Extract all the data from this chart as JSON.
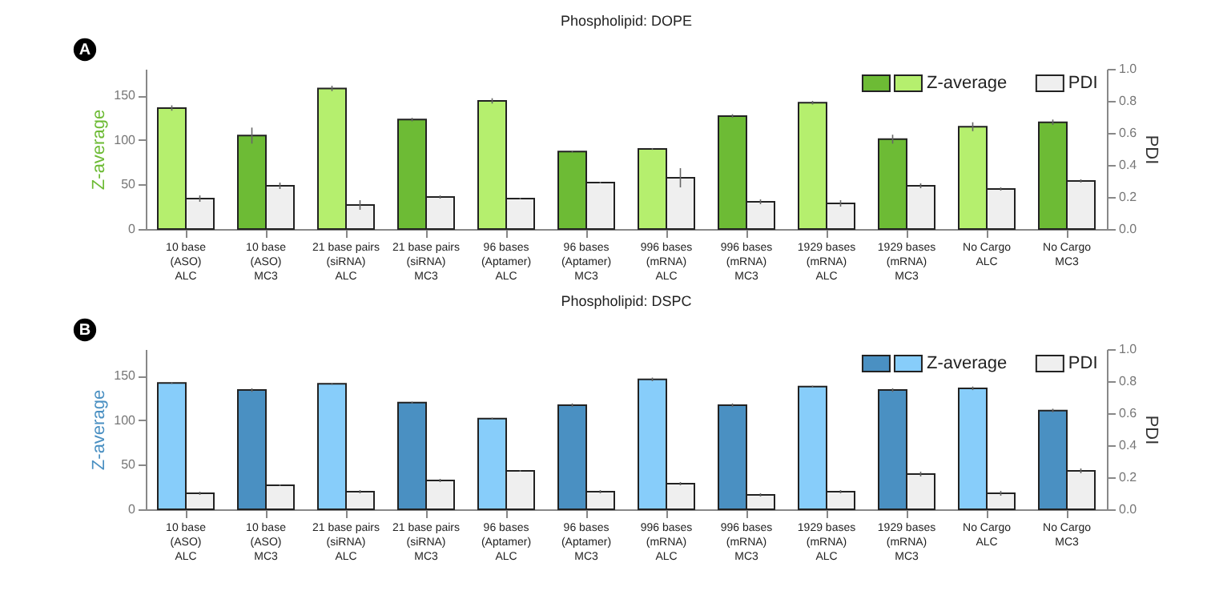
{
  "chart_data": [
    {
      "type": "bar",
      "title": "Phospholipid: DOPE",
      "annotations": [
        "A"
      ],
      "ylabel": "Z-average",
      "y2label": "PDI",
      "categories": [
        "10 base\n(ASO)\nALC",
        "10 base\n(ASO)\nMC3",
        "21 base pairs\n(siRNA)\nALC",
        "21 base pairs\n(siRNA)\nMC3",
        "96 bases\n(Aptamer)\nALC",
        "96 bases\n(Aptamer)\nMC3",
        "996 bases\n(mRNA)\nALC",
        "996 bases\n(mRNA)\nMC3",
        "1929 bases\n(mRNA)\nALC",
        "1929 bases\n(mRNA)\nMC3",
        "No Cargo\nALC",
        "No Cargo\nMC3"
      ],
      "series": [
        {
          "name": "Z-average",
          "colors": [
            "#b5ef6e",
            "#6dbb35",
            "#b5ef6e",
            "#6dbb35",
            "#b5ef6e",
            "#6dbb35",
            "#b5ef6e",
            "#6dbb35",
            "#b5ef6e",
            "#6dbb35",
            "#b5ef6e",
            "#6dbb35"
          ],
          "values": [
            136,
            105,
            158,
            123,
            144,
            87,
            90,
            127,
            142,
            101,
            115,
            120
          ],
          "errors": [
            3,
            9,
            3,
            2,
            3,
            1,
            1,
            2,
            2,
            5,
            5,
            3
          ]
        },
        {
          "name": "PDI",
          "color": "#efefef",
          "axis": "y2",
          "values": [
            0.19,
            0.27,
            0.15,
            0.2,
            0.19,
            0.29,
            0.32,
            0.17,
            0.16,
            0.27,
            0.25,
            0.3
          ],
          "errors": [
            0.02,
            0.02,
            0.03,
            0.01,
            0.005,
            0.005,
            0.06,
            0.015,
            0.02,
            0.015,
            0.01,
            0.01
          ]
        }
      ],
      "ylim": [
        0,
        180
      ],
      "yticks": [
        0,
        50,
        100,
        150
      ],
      "y2lim": [
        0,
        1
      ],
      "y2ticks": [
        {
          "value": 0,
          "label": "0.0"
        },
        {
          "value": 0.2,
          "label": "0.2"
        },
        {
          "value": 0.4,
          "label": "0.4"
        },
        {
          "value": 0.6,
          "label": "0.6"
        },
        {
          "value": 0.8,
          "label": "0.8"
        },
        {
          "value": 1,
          "label": "1.0"
        }
      ],
      "legend": "top right"
    },
    {
      "type": "bar",
      "title": "Phospholipid: DSPC",
      "annotations": [
        "B"
      ],
      "ylabel": "Z-average",
      "y2label": "PDI",
      "categories": [
        "10 base\n(ASO)\nALC",
        "10 base\n(ASO)\nMC3",
        "21 base pairs\n(siRNA)\nALC",
        "21 base pairs\n(siRNA)\nMC3",
        "96 bases\n(Aptamer)\nALC",
        "96 bases\n(Aptamer)\nMC3",
        "996 bases\n(mRNA)\nALC",
        "996 bases\n(mRNA)\nMC3",
        "1929 bases\n(mRNA)\nALC",
        "1929 bases\n(mRNA)\nMC3",
        "No Cargo\nALC",
        "No Cargo\nMC3"
      ],
      "series": [
        {
          "name": "Z-average",
          "colors": [
            "#87cdfa",
            "#4a90c2",
            "#87cdfa",
            "#4a90c2",
            "#87cdfa",
            "#4a90c2",
            "#87cdfa",
            "#4a90c2",
            "#87cdfa",
            "#4a90c2",
            "#87cdfa",
            "#4a90c2"
          ],
          "values": [
            142,
            134,
            141,
            120,
            102,
            117,
            146,
            117,
            138,
            134,
            136,
            111
          ],
          "errors": [
            1,
            2,
            1,
            1,
            1,
            2,
            2,
            2,
            1,
            2,
            2,
            2
          ]
        },
        {
          "name": "PDI",
          "color": "#efefef",
          "axis": "y2",
          "values": [
            0.1,
            0.15,
            0.11,
            0.18,
            0.24,
            0.11,
            0.16,
            0.09,
            0.11,
            0.22,
            0.1,
            0.24
          ],
          "errors": [
            0.01,
            0.005,
            0.01,
            0.01,
            0.005,
            0.01,
            0.01,
            0.01,
            0.01,
            0.015,
            0.015,
            0.015
          ]
        }
      ],
      "ylim": [
        0,
        180
      ],
      "yticks": [
        0,
        50,
        100,
        150
      ],
      "y2lim": [
        0,
        1
      ],
      "y2ticks": [
        {
          "value": 0,
          "label": "0.0"
        },
        {
          "value": 0.2,
          "label": "0.2"
        },
        {
          "value": 0.4,
          "label": "0.4"
        },
        {
          "value": 0.6,
          "label": "0.6"
        },
        {
          "value": 0.8,
          "label": "0.8"
        },
        {
          "value": 1,
          "label": "1.0"
        }
      ],
      "legend": "top right"
    }
  ]
}
